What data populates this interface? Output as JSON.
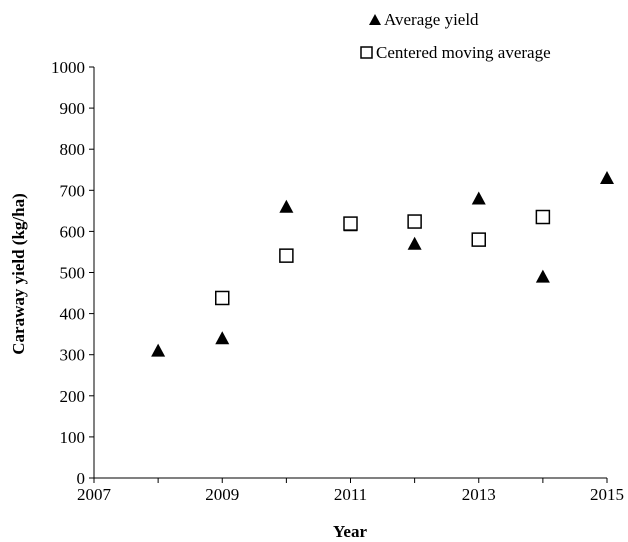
{
  "chart_data": {
    "type": "scatter",
    "title": "",
    "xlabel": "Year",
    "ylabel": "Caraway yield (kg/ha)",
    "xlim": [
      2007,
      2015
    ],
    "ylim": [
      0,
      1000
    ],
    "xticks": [
      "2007",
      "2009",
      "2011",
      "2013",
      "2015"
    ],
    "yticks": [
      "0",
      "100",
      "200",
      "300",
      "400",
      "500",
      "600",
      "700",
      "800",
      "900",
      "1000"
    ],
    "grid": false,
    "legend_position": "top-right",
    "series": [
      {
        "name": "Average yield",
        "marker": "filled-triangle",
        "color": "#000000",
        "x": [
          2008,
          2009,
          2010,
          2011,
          2012,
          2013,
          2014,
          2015
        ],
        "y": [
          310,
          340,
          660,
          615,
          570,
          680,
          490,
          730
        ]
      },
      {
        "name": "Centered moving average",
        "marker": "open-square",
        "color": "#000000",
        "x": [
          2009,
          2010,
          2011,
          2012,
          2013,
          2014
        ],
        "y": [
          438,
          541,
          619,
          624,
          580,
          635
        ]
      }
    ]
  }
}
